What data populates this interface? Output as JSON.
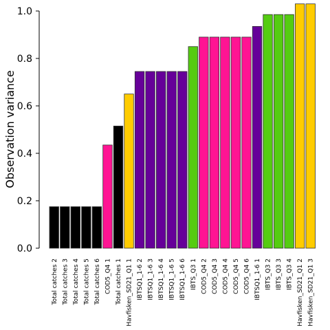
{
  "chart_data": {
    "type": "bar",
    "ylabel": "Observation variance",
    "xlabel": "",
    "title": "",
    "ylim": [
      0,
      1.0
    ],
    "yticks": [
      "0.0",
      "0.2",
      "0.4",
      "0.6",
      "0.8",
      "1.0"
    ],
    "categories": [
      "Total catches 2",
      "Total catches 3",
      "Total catches 4",
      "Total catches 5",
      "Total catches 6",
      "COD5_Q4 1",
      "Total catches 1",
      "Havfisken_SD21_Q1 1",
      "IBTSQ1_1-6 2",
      "IBTSQ1_1-6 3",
      "IBTSQ1_1-6 4",
      "IBTSQ1_1-6 5",
      "IBTSQ1_1-6 6",
      "IBTS_Q3 1",
      "COD5_Q4 2",
      "COD5_Q4 3",
      "COD5_Q4 4",
      "COD5_Q4 5",
      "COD5_Q4 6",
      "IBTSQ1_1-6 1",
      "IBTS_Q3 2",
      "IBTS_Q3 3",
      "IBTS_Q3 4",
      "Havfisken_SD21_Q1 2",
      "Havfisken_SD21_Q1 3"
    ],
    "values": [
      0.175,
      0.175,
      0.175,
      0.175,
      0.175,
      0.435,
      0.515,
      0.65,
      0.745,
      0.745,
      0.745,
      0.745,
      0.745,
      0.85,
      0.89,
      0.89,
      0.89,
      0.89,
      0.89,
      0.935,
      0.985,
      0.985,
      0.985,
      1.03,
      1.03
    ],
    "colors": [
      "#000000",
      "#000000",
      "#000000",
      "#000000",
      "#000000",
      "#ff1493",
      "#000000",
      "#ffcc00",
      "#660099",
      "#660099",
      "#660099",
      "#660099",
      "#660099",
      "#55cc11",
      "#ff1493",
      "#ff1493",
      "#ff1493",
      "#ff1493",
      "#ff1493",
      "#660099",
      "#55cc11",
      "#55cc11",
      "#55cc11",
      "#ffcc00",
      "#ffcc00"
    ],
    "grid": false,
    "legend": "none"
  }
}
